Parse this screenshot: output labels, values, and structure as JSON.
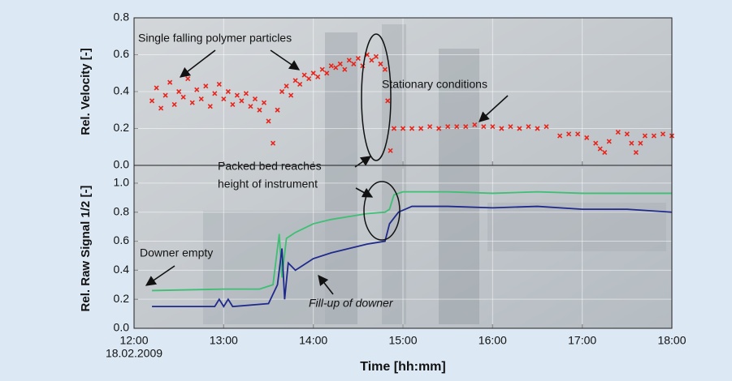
{
  "chart_data": [
    {
      "type": "scatter",
      "y_label": "Rel. Velocity [-]",
      "color": "#e8251c",
      "grid": true,
      "xlim": [
        12,
        18
      ],
      "xticks": [
        12,
        13,
        14,
        15,
        16,
        17,
        18
      ],
      "ylim": [
        0,
        0.8
      ],
      "yticks": [
        {
          "value": 0,
          "label": "0.0"
        },
        0.2,
        0.4,
        0.6,
        0.8
      ],
      "annotations": [
        "Single falling polymer particles",
        "Stationary conditions"
      ],
      "series": [
        {
          "color": "#e8251c",
          "x": [
            12.2,
            12.25,
            12.3,
            12.35,
            12.4,
            12.45,
            12.5,
            12.55,
            12.6,
            12.65,
            12.7,
            12.75,
            12.8,
            12.85,
            12.9,
            12.95,
            13.0,
            13.05,
            13.1,
            13.15,
            13.2,
            13.25,
            13.3,
            13.35,
            13.4,
            13.45,
            13.5,
            13.55,
            13.6,
            13.65,
            13.7,
            13.75,
            13.8,
            13.85,
            13.9,
            13.95,
            14.0,
            14.05,
            14.1,
            14.15,
            14.2,
            14.25,
            14.3,
            14.35,
            14.4,
            14.45,
            14.5,
            14.55,
            14.6,
            14.65,
            14.7,
            14.75,
            14.8,
            14.83,
            14.86,
            14.9,
            15.0,
            15.1,
            15.2,
            15.3,
            15.4,
            15.5,
            15.6,
            15.7,
            15.8,
            15.9,
            16.0,
            16.1,
            16.2,
            16.3,
            16.4,
            16.5,
            16.6,
            16.75,
            16.85,
            16.95,
            17.05,
            17.15,
            17.2,
            17.25,
            17.3,
            17.4,
            17.5,
            17.55,
            17.6,
            17.65,
            17.7,
            17.8,
            17.9,
            18.0
          ],
          "values": [
            0.35,
            0.42,
            0.31,
            0.38,
            0.45,
            0.33,
            0.4,
            0.37,
            0.47,
            0.34,
            0.41,
            0.36,
            0.43,
            0.32,
            0.39,
            0.44,
            0.36,
            0.4,
            0.33,
            0.38,
            0.35,
            0.39,
            0.32,
            0.36,
            0.3,
            0.34,
            0.24,
            0.12,
            0.3,
            0.4,
            0.43,
            0.38,
            0.46,
            0.44,
            0.49,
            0.47,
            0.5,
            0.48,
            0.52,
            0.5,
            0.54,
            0.53,
            0.55,
            0.52,
            0.57,
            0.55,
            0.58,
            0.54,
            0.6,
            0.57,
            0.59,
            0.55,
            0.52,
            0.35,
            0.08,
            0.2,
            0.2,
            0.2,
            0.2,
            0.21,
            0.2,
            0.21,
            0.21,
            0.21,
            0.22,
            0.21,
            0.21,
            0.2,
            0.21,
            0.2,
            0.21,
            0.2,
            0.21,
            0.16,
            0.17,
            0.17,
            0.15,
            0.12,
            0.09,
            0.07,
            0.13,
            0.18,
            0.17,
            0.12,
            0.07,
            0.12,
            0.16,
            0.16,
            0.17,
            0.16
          ]
        }
      ]
    },
    {
      "type": "line",
      "y_label": "Rel. Raw Signal 1/2 [-]",
      "x_label": "Time [hh:mm]",
      "x_date_label": "18.02.2009",
      "grid": true,
      "xlim": [
        12,
        18
      ],
      "xticks": [
        {
          "value": 12,
          "label": "12:00"
        },
        {
          "value": 13,
          "label": "13:00"
        },
        {
          "value": 14,
          "label": "14:00"
        },
        {
          "value": 15,
          "label": "15:00"
        },
        {
          "value": 16,
          "label": "16:00"
        },
        {
          "value": 17,
          "label": "17:00"
        },
        {
          "value": 18,
          "label": "18:00"
        }
      ],
      "ylim": [
        0,
        1.1
      ],
      "yticks": [
        {
          "value": 0,
          "label": "0.0"
        },
        0.2,
        0.4,
        0.6,
        0.8,
        {
          "value": 1,
          "label": "1.0"
        }
      ],
      "annotations": [
        [
          "Packed bed reaches",
          "height of instrument"
        ],
        "Downer empty",
        "Fill-up of downer"
      ],
      "series": [
        {
          "color": "#3dbf74",
          "x": [
            12.2,
            13.0,
            13.4,
            13.55,
            13.62,
            13.65,
            13.7,
            13.8,
            14.0,
            14.2,
            14.4,
            14.6,
            14.8,
            14.85,
            14.9,
            15.0,
            15.5,
            16.0,
            16.5,
            17.0,
            17.5,
            18.0
          ],
          "values": [
            0.26,
            0.27,
            0.27,
            0.3,
            0.65,
            0.35,
            0.62,
            0.66,
            0.72,
            0.75,
            0.77,
            0.79,
            0.8,
            0.82,
            0.92,
            0.94,
            0.94,
            0.93,
            0.94,
            0.93,
            0.93,
            0.93
          ]
        },
        {
          "color": "#1f2a8c",
          "x": [
            12.2,
            12.9,
            12.95,
            13.0,
            13.05,
            13.1,
            13.5,
            13.6,
            13.65,
            13.68,
            13.72,
            13.8,
            14.0,
            14.2,
            14.4,
            14.6,
            14.8,
            14.85,
            14.95,
            15.1,
            15.5,
            16.0,
            16.5,
            17.0,
            17.5,
            18.0
          ],
          "values": [
            0.15,
            0.15,
            0.2,
            0.15,
            0.2,
            0.15,
            0.17,
            0.3,
            0.55,
            0.2,
            0.45,
            0.4,
            0.48,
            0.52,
            0.55,
            0.58,
            0.6,
            0.72,
            0.8,
            0.84,
            0.84,
            0.83,
            0.84,
            0.82,
            0.82,
            0.8
          ]
        }
      ]
    }
  ]
}
